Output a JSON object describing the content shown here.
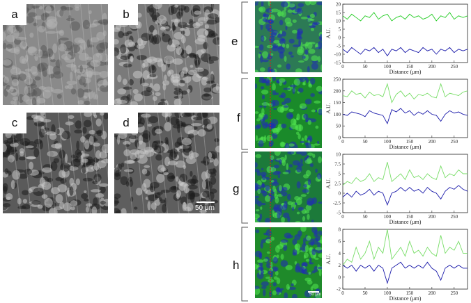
{
  "grayscale_panels": [
    {
      "letter": "a"
    },
    {
      "letter": "b"
    },
    {
      "letter": "c"
    },
    {
      "letter": "d"
    }
  ],
  "grayscale_scalebar": "50 μm",
  "color_scalebar": "50 μm",
  "rows": [
    "e",
    "f",
    "g",
    "h"
  ],
  "colors": {
    "green": "#22cc22",
    "blue": "#1a1aaa",
    "light_green": "#77dd66",
    "dash": "#cc2222"
  },
  "chart_data": [
    {
      "type": "line",
      "row": "e",
      "xlabel": "Distance (μm)",
      "ylabel": "A.U.",
      "xlim": [
        0,
        280
      ],
      "ylim": [
        -15,
        20
      ],
      "xticks": [
        0,
        50,
        100,
        150,
        200,
        250
      ],
      "yticks": [
        20,
        15,
        10,
        5,
        0,
        -5,
        -10,
        -15
      ],
      "series": [
        {
          "color": "green",
          "x": [
            0,
            10,
            20,
            30,
            40,
            50,
            60,
            70,
            80,
            90,
            100,
            110,
            120,
            130,
            140,
            150,
            160,
            170,
            180,
            190,
            200,
            210,
            220,
            230,
            240,
            250,
            260,
            270,
            280
          ],
          "values": [
            13,
            11,
            14,
            12,
            10,
            13,
            12,
            15,
            11,
            13,
            14,
            10,
            12,
            13,
            11,
            14,
            12,
            13,
            11,
            12,
            14,
            10,
            13,
            12,
            15,
            11,
            13,
            12,
            13
          ]
        },
        {
          "color": "blue",
          "x": [
            0,
            10,
            20,
            30,
            40,
            50,
            60,
            70,
            80,
            90,
            100,
            110,
            120,
            130,
            140,
            150,
            160,
            170,
            180,
            190,
            200,
            210,
            220,
            230,
            240,
            250,
            260,
            270,
            280
          ],
          "values": [
            -7,
            -9,
            -6,
            -8,
            -10,
            -7,
            -8,
            -6,
            -9,
            -7,
            -11,
            -7,
            -8,
            -6,
            -9,
            -7,
            -8,
            -9,
            -6,
            -8,
            -7,
            -10,
            -7,
            -8,
            -6,
            -9,
            -7,
            -8,
            -7
          ]
        }
      ]
    },
    {
      "type": "line",
      "row": "f",
      "xlabel": "Distance (μm)",
      "ylabel": "A.U.",
      "xlim": [
        0,
        280
      ],
      "ylim": [
        0,
        250
      ],
      "xticks": [
        0,
        50,
        100,
        150,
        200,
        250
      ],
      "yticks": [
        250,
        200,
        150,
        100,
        50,
        0
      ],
      "series": [
        {
          "color": "light_green",
          "x": [
            0,
            10,
            20,
            30,
            40,
            50,
            60,
            70,
            80,
            90,
            100,
            110,
            120,
            130,
            140,
            150,
            160,
            170,
            180,
            190,
            200,
            210,
            220,
            230,
            240,
            250,
            260,
            270,
            280
          ],
          "values": [
            180,
            175,
            200,
            185,
            190,
            170,
            195,
            180,
            185,
            175,
            230,
            150,
            185,
            200,
            175,
            190,
            165,
            185,
            180,
            190,
            175,
            170,
            230,
            175,
            190,
            185,
            180,
            195,
            200
          ]
        },
        {
          "color": "blue",
          "x": [
            0,
            10,
            20,
            30,
            40,
            50,
            60,
            70,
            80,
            90,
            100,
            110,
            120,
            130,
            140,
            150,
            160,
            170,
            180,
            190,
            200,
            210,
            220,
            230,
            240,
            250,
            260,
            270,
            280
          ],
          "values": [
            100,
            95,
            110,
            105,
            100,
            90,
            115,
            105,
            100,
            95,
            60,
            120,
            110,
            125,
            105,
            115,
            95,
            110,
            100,
            115,
            100,
            95,
            70,
            100,
            115,
            105,
            110,
            100,
            95
          ]
        }
      ]
    },
    {
      "type": "line",
      "row": "g",
      "xlabel": "Distance (μm)",
      "ylabel": "A.U.",
      "xlim": [
        0,
        280
      ],
      "ylim": [
        -5,
        10
      ],
      "xticks": [
        0,
        50,
        100,
        150,
        200,
        250
      ],
      "yticks": [
        10,
        7.5,
        5,
        2.5,
        0,
        -2.5,
        -5
      ],
      "series": [
        {
          "color": "light_green",
          "x": [
            0,
            10,
            20,
            30,
            40,
            50,
            60,
            70,
            80,
            90,
            100,
            110,
            120,
            130,
            140,
            150,
            160,
            170,
            180,
            190,
            200,
            210,
            220,
            230,
            240,
            250,
            260,
            270,
            280
          ],
          "values": [
            2,
            3,
            2.5,
            4,
            3,
            3.5,
            5,
            3,
            4,
            3.5,
            8,
            3,
            4,
            5,
            3.5,
            6,
            4,
            4.5,
            3.5,
            5,
            4,
            3.5,
            7,
            4,
            5,
            4.5,
            6,
            5,
            5
          ]
        },
        {
          "color": "blue",
          "x": [
            0,
            10,
            20,
            30,
            40,
            50,
            60,
            70,
            80,
            90,
            100,
            110,
            120,
            130,
            140,
            150,
            160,
            170,
            180,
            190,
            200,
            210,
            220,
            230,
            240,
            250,
            260,
            270,
            280
          ],
          "values": [
            -1,
            0,
            -1,
            0.5,
            -0.5,
            0,
            1,
            -0.5,
            0.5,
            0,
            -3,
            0,
            0.5,
            1.5,
            0.5,
            1.5,
            0.5,
            1,
            0,
            1.5,
            0.5,
            0,
            -1.5,
            0.5,
            1.5,
            1,
            2,
            1,
            0.5
          ]
        }
      ]
    },
    {
      "type": "line",
      "row": "h",
      "xlabel": "Distance (μm)",
      "ylabel": "A.U.",
      "xlim": [
        0,
        280
      ],
      "ylim": [
        -2,
        8
      ],
      "xticks": [
        0,
        50,
        100,
        150,
        200,
        250
      ],
      "yticks": [
        8,
        6,
        4,
        2,
        0,
        -2
      ],
      "series": [
        {
          "color": "light_green",
          "x": [
            0,
            10,
            20,
            30,
            40,
            50,
            60,
            70,
            80,
            90,
            100,
            110,
            120,
            130,
            140,
            150,
            160,
            170,
            180,
            190,
            200,
            210,
            220,
            230,
            240,
            250,
            260,
            270,
            280
          ],
          "values": [
            2,
            3,
            2.5,
            5,
            3,
            4,
            6,
            3,
            5,
            4,
            8,
            3,
            4,
            5,
            3.5,
            6,
            4,
            4.5,
            3.5,
            5,
            4,
            3.5,
            7,
            4,
            5,
            4.5,
            6,
            4,
            4
          ]
        },
        {
          "color": "blue",
          "x": [
            0,
            10,
            20,
            30,
            40,
            50,
            60,
            70,
            80,
            90,
            100,
            110,
            120,
            130,
            140,
            150,
            160,
            170,
            180,
            190,
            200,
            210,
            220,
            230,
            240,
            250,
            260,
            270,
            280
          ],
          "values": [
            2,
            1.5,
            2,
            1,
            2,
            1.5,
            2,
            1,
            2,
            1.5,
            -1,
            1.5,
            2,
            2.5,
            1.5,
            2,
            1.5,
            2,
            1.5,
            2.5,
            1.5,
            1,
            -0.5,
            1.5,
            2,
            1.5,
            2,
            1.5,
            1.5
          ]
        }
      ]
    }
  ]
}
